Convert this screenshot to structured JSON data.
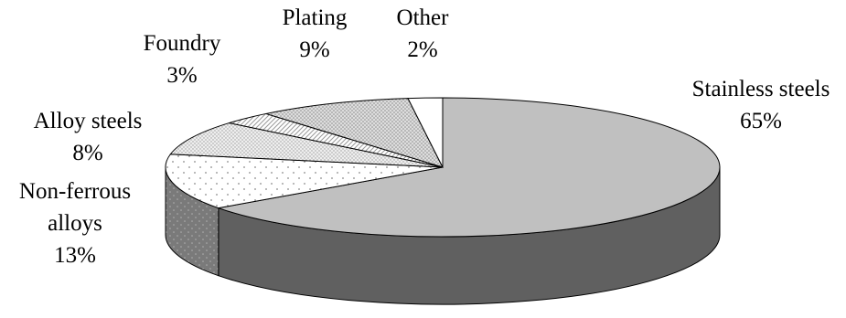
{
  "chart_data": {
    "type": "pie",
    "style": "3d-exploded-tilted",
    "title": "",
    "slices": [
      {
        "label_lines": [
          "Stainless steels"
        ],
        "value_label": "65%",
        "value": 65,
        "fill": "#c0c0c0",
        "side_fill": "#606060",
        "pattern": "solid"
      },
      {
        "label_lines": [
          "Non-ferrous",
          "alloys"
        ],
        "value_label": "13%",
        "value": 13,
        "fill": "#ffffff",
        "side_fill": "#7a7a7a",
        "pattern": "sparse-dots"
      },
      {
        "label_lines": [
          "Alloy steels"
        ],
        "value_label": "8%",
        "value": 8,
        "fill": "#e6e6e6",
        "side_fill": "#808080",
        "pattern": "fine-dots"
      },
      {
        "label_lines": [
          "Foundry"
        ],
        "value_label": "3%",
        "value": 3,
        "fill": "#ebebeb",
        "side_fill": "#808080",
        "pattern": "diagonal"
      },
      {
        "label_lines": [
          "Plating"
        ],
        "value_label": "9%",
        "value": 9,
        "fill": "#d9d9d9",
        "side_fill": "#808080",
        "pattern": "dense-dots"
      },
      {
        "label_lines": [
          "Other"
        ],
        "value_label": "2%",
        "value": 2,
        "fill": "#ffffff",
        "side_fill": "#808080",
        "pattern": "solid"
      }
    ],
    "legend": "none"
  }
}
